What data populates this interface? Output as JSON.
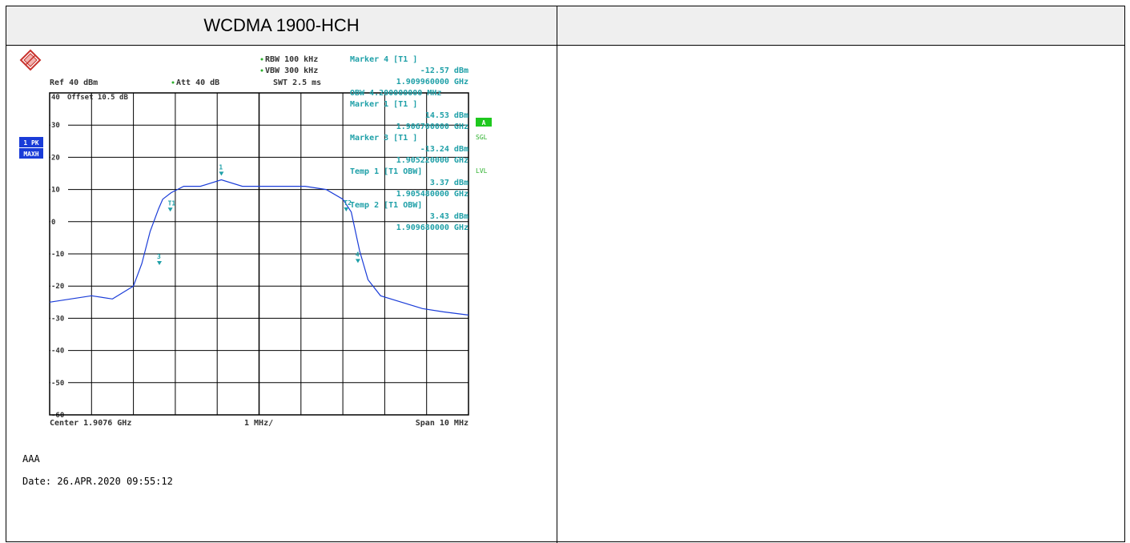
{
  "header": {
    "title": "WCDMA 1900-HCH",
    "right": ""
  },
  "instrument": {
    "rbw": "RBW 100 kHz",
    "vbw": "VBW 300 kHz",
    "swt": "SWT 2.5 ms",
    "ref": "Ref  40 dBm",
    "att": "Att  40 dB",
    "offset": "Offset  10.5 dB",
    "trace_badge_1": "1 PK",
    "trace_badge_2": "MAXH",
    "side_a": "A",
    "side_sgl": "SGL",
    "side_lvl": "LVL",
    "accent_color": "#1a3cd8",
    "marker_color": "#1fa0a8"
  },
  "marker_info": [
    "Marker 4 [T1 ]",
    "-12.57 dBm",
    "1.909960000 GHz",
    "OBW  4.200000000 MHz",
    "Marker 1 [T1 ]",
    "14.53 dBm",
    "1.906700000 GHz",
    "Marker 3 [T1 ]",
    "-13.24 dBm",
    "1.905220000 GHz",
    "Temp 1 [T1 OBW]",
    "3.37 dBm",
    "1.905480000 GHz",
    "Temp 2 [T1 OBW]",
    "3.43 dBm",
    "1.909680000 GHz"
  ],
  "chart_data": {
    "type": "line",
    "title": "",
    "xlabel_left": "Center 1.9076 GHz",
    "xlabel_mid": "1 MHz/",
    "xlabel_right": "Span 10 MHz",
    "x_unit": "GHz",
    "y_unit": "dBm",
    "xlim": [
      1.9026,
      1.9126
    ],
    "ylim": [
      -60,
      40
    ],
    "y_ticks": [
      40,
      30,
      20,
      10,
      0,
      -10,
      -20,
      -30,
      -40,
      -50,
      -60
    ],
    "y_tick_labels": [
      "40",
      "30",
      "20",
      "10",
      "0",
      "-10",
      "-20",
      "-30",
      "-40",
      "-50",
      "-60"
    ],
    "grid": true,
    "series": [
      {
        "x": [
          1.9026,
          1.9031,
          1.9036,
          1.9041,
          1.9046,
          1.9048,
          1.905,
          1.9052,
          1.9053,
          1.9055,
          1.9058,
          1.9062,
          1.9067,
          1.9072,
          1.9077,
          1.9082,
          1.9087,
          1.9092,
          1.9096,
          1.9098,
          1.91,
          1.9102,
          1.9105,
          1.911,
          1.9115,
          1.912,
          1.9126
        ],
        "y": [
          -25,
          -24,
          -23,
          -24,
          -20,
          -13,
          -3,
          4,
          7,
          9,
          11,
          11,
          13,
          11,
          11,
          11,
          11,
          10,
          7,
          3,
          -9,
          -18,
          -23,
          -25,
          -27,
          -28,
          -29
        ]
      }
    ],
    "markers": [
      {
        "label": "1",
        "x": 1.9067,
        "y": 14.53
      },
      {
        "label": "3",
        "x": 1.90522,
        "y": -13.24
      },
      {
        "label": "4",
        "x": 1.90996,
        "y": -12.57
      },
      {
        "label": "T1",
        "x": 1.90548,
        "y": 3.37
      },
      {
        "label": "T2",
        "x": 1.90968,
        "y": 3.43
      }
    ]
  },
  "footer": {
    "note": "AAA",
    "date": "Date: 26.APR.2020  09:55:12"
  }
}
